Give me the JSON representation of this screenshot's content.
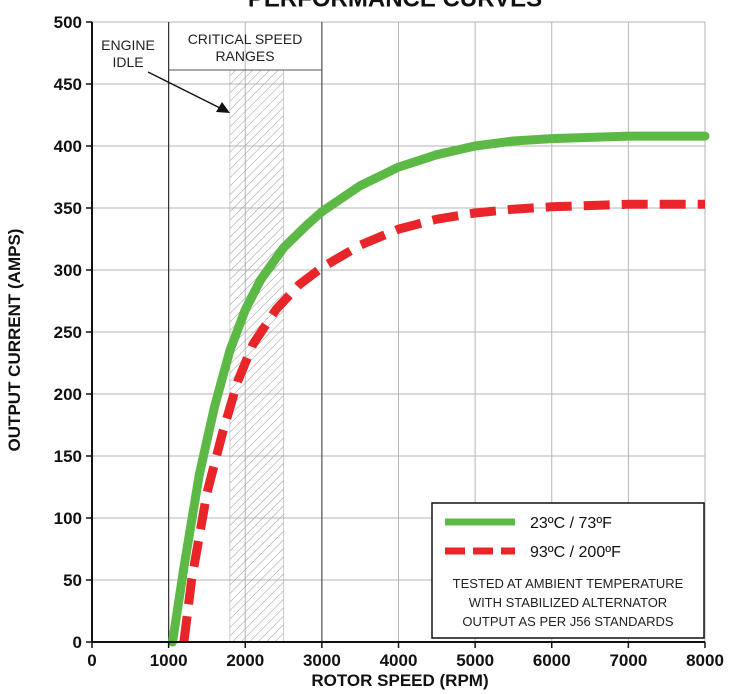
{
  "chart_data": {
    "type": "line",
    "title": "PERFORMANCE CURVES",
    "xlabel": "ROTOR SPEED (RPM)",
    "ylabel": "OUTPUT CURRENT (AMPS)",
    "xlim": [
      0,
      8000
    ],
    "ylim": [
      0,
      500
    ],
    "x_ticks": [
      0,
      1000,
      2000,
      3000,
      4000,
      5000,
      6000,
      7000,
      8000
    ],
    "y_ticks": [
      0,
      50,
      100,
      150,
      200,
      250,
      300,
      350,
      400,
      450,
      500
    ],
    "x_tick_labels": [
      "0",
      "1000",
      "2000",
      "3000",
      "4000",
      "5000",
      "6000",
      "7000",
      "8000"
    ],
    "y_tick_labels": [
      "0",
      "50",
      "100",
      "150",
      "200",
      "250",
      "300",
      "350",
      "400",
      "450",
      "500"
    ],
    "grid": true,
    "legend_position": "bottom-right",
    "series": [
      {
        "name": "23ºC / 73ºF",
        "color": "#5cb946",
        "style": "solid",
        "points": [
          [
            1050,
            0
          ],
          [
            1200,
            60
          ],
          [
            1400,
            135
          ],
          [
            1600,
            190
          ],
          [
            1800,
            235
          ],
          [
            2000,
            268
          ],
          [
            2200,
            292
          ],
          [
            2500,
            318
          ],
          [
            2800,
            336
          ],
          [
            3000,
            347
          ],
          [
            3500,
            368
          ],
          [
            4000,
            383
          ],
          [
            4500,
            393
          ],
          [
            5000,
            400
          ],
          [
            5500,
            404
          ],
          [
            6000,
            406
          ],
          [
            7000,
            408
          ],
          [
            8000,
            408
          ]
        ]
      },
      {
        "name": "93ºC / 200ºF",
        "color": "#e8262a",
        "style": "dashed",
        "points": [
          [
            1200,
            0
          ],
          [
            1300,
            50
          ],
          [
            1500,
            120
          ],
          [
            1700,
            168
          ],
          [
            1900,
            210
          ],
          [
            2100,
            240
          ],
          [
            2400,
            268
          ],
          [
            2700,
            288
          ],
          [
            3000,
            302
          ],
          [
            3500,
            320
          ],
          [
            4000,
            333
          ],
          [
            4500,
            341
          ],
          [
            5000,
            346
          ],
          [
            5500,
            349
          ],
          [
            6000,
            351
          ],
          [
            7000,
            353
          ],
          [
            8000,
            353
          ]
        ]
      }
    ],
    "annotations": {
      "engine_idle": {
        "line1": "ENGINE",
        "line2": "IDLE",
        "x": 1000
      },
      "critical_speed": {
        "line1": "CRITICAL SPEED",
        "line2": "RANGES",
        "range": [
          1800,
          2500
        ]
      },
      "test_note": [
        "TESTED AT AMBIENT TEMPERATURE",
        "WITH  STABILIZED ALTERNATOR",
        "OUTPUT AS PER J56 STANDARDS"
      ]
    }
  }
}
